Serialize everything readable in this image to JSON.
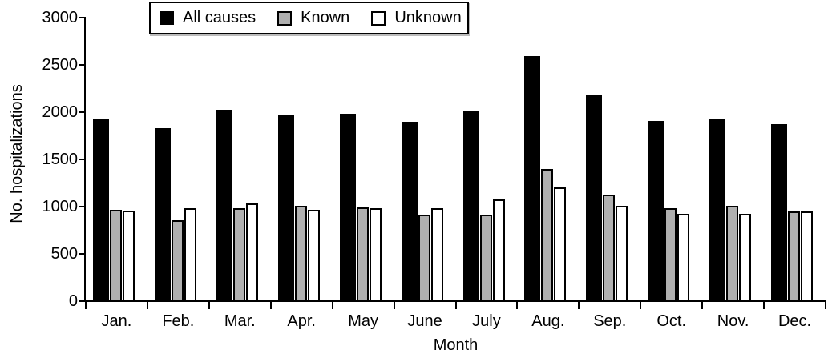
{
  "chart_data": {
    "type": "bar",
    "title": "",
    "xlabel": "Month",
    "ylabel": "No. hospitalizations",
    "ylim": [
      0,
      3000
    ],
    "yticks": [
      0,
      500,
      1000,
      1500,
      2000,
      2500,
      3000
    ],
    "grid": false,
    "legend_position": "top",
    "categories": [
      "Jan.",
      "Feb.",
      "Mar.",
      "Apr.",
      "May",
      "June",
      "July",
      "Aug.",
      "Sep.",
      "Oct.",
      "Nov.",
      "Dec."
    ],
    "series": [
      {
        "name": "All causes",
        "color": "#000000",
        "outlined": false,
        "values": [
          1930,
          1830,
          2025,
          1965,
          1985,
          1900,
          2005,
          2590,
          2175,
          1910,
          1930,
          1875
        ]
      },
      {
        "name": "Known",
        "color": "#b0b0b0",
        "outlined": true,
        "values": [
          965,
          855,
          980,
          1010,
          990,
          915,
          915,
          1395,
          1130,
          985,
          1005,
          945
        ]
      },
      {
        "name": "Unknown",
        "color": "#ffffff",
        "outlined": true,
        "values": [
          960,
          985,
          1030,
          965,
          985,
          985,
          1075,
          1205,
          1005,
          925,
          925,
          950
        ]
      }
    ],
    "axis_color": "#000000",
    "background_color": "#ffffff"
  }
}
